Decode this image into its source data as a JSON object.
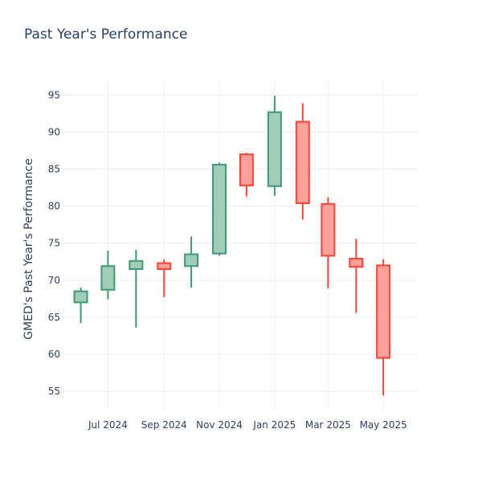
{
  "chart_data": {
    "type": "candlestick",
    "title": "Past Year's Performance",
    "xlabel": "",
    "ylabel": "GMED's Past Year's Performance",
    "ylim": [
      52.5,
      97
    ],
    "yticks": [
      55,
      60,
      65,
      70,
      75,
      80,
      85,
      90,
      95
    ],
    "xlim": [
      "2024-05-12",
      "2025-06-08"
    ],
    "xticks": [
      {
        "date": "2024-07-01",
        "label": "Jul 2024"
      },
      {
        "date": "2024-09-01",
        "label": "Sep 2024"
      },
      {
        "date": "2024-11-01",
        "label": "Nov 2024"
      },
      {
        "date": "2025-01-01",
        "label": "Jan 2025"
      },
      {
        "date": "2025-03-01",
        "label": "Mar 2025"
      },
      {
        "date": "2025-05-01",
        "label": "May 2025"
      }
    ],
    "grid": true,
    "colors": {
      "increasing_line": "#3d9970",
      "increasing_fill": "#a0cdb8",
      "decreasing_line": "#ff4136",
      "decreasing_fill": "#ffa09b",
      "text": "#2a3f5f",
      "grid": "#eeeeee"
    },
    "candles": [
      {
        "date": "2024-06-01",
        "open": 67.0,
        "high": 69.0,
        "low": 64.2,
        "close": 68.5
      },
      {
        "date": "2024-07-01",
        "open": 68.7,
        "high": 74.0,
        "low": 67.4,
        "close": 71.9
      },
      {
        "date": "2024-08-01",
        "open": 71.5,
        "high": 74.1,
        "low": 63.6,
        "close": 72.6
      },
      {
        "date": "2024-09-01",
        "open": 72.3,
        "high": 72.8,
        "low": 67.7,
        "close": 71.5
      },
      {
        "date": "2024-10-01",
        "open": 71.9,
        "high": 75.9,
        "low": 69.0,
        "close": 73.5
      },
      {
        "date": "2024-11-01",
        "open": 73.6,
        "high": 85.9,
        "low": 73.3,
        "close": 85.6
      },
      {
        "date": "2024-12-01",
        "open": 87.0,
        "high": 87.2,
        "low": 81.3,
        "close": 82.8
      },
      {
        "date": "2025-01-01",
        "open": 82.7,
        "high": 94.9,
        "low": 81.4,
        "close": 92.7
      },
      {
        "date": "2025-02-01",
        "open": 91.4,
        "high": 93.9,
        "low": 78.2,
        "close": 80.4
      },
      {
        "date": "2025-03-01",
        "open": 80.3,
        "high": 81.2,
        "low": 68.9,
        "close": 73.3
      },
      {
        "date": "2025-04-01",
        "open": 72.9,
        "high": 75.6,
        "low": 65.6,
        "close": 71.8
      },
      {
        "date": "2025-05-01",
        "open": 72.0,
        "high": 72.8,
        "low": 54.4,
        "close": 59.5
      }
    ]
  }
}
